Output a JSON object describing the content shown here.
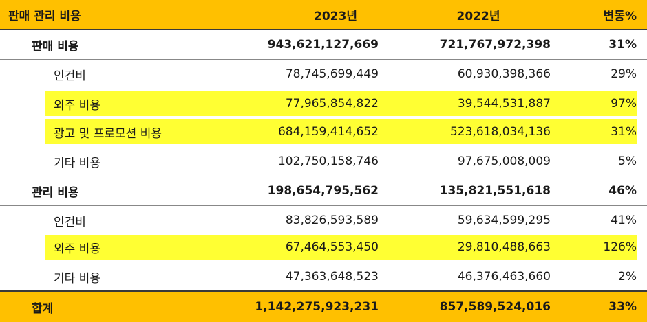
{
  "header": {
    "label": "판매 관리 비용",
    "y2023": "2023년",
    "y2022": "2022년",
    "change": "변동%"
  },
  "rows": [
    {
      "label": "판매 비용",
      "y2023": "943,621,127,669",
      "y2022": "721,767,972,398",
      "change": "31%"
    },
    {
      "label": "인건비",
      "y2023": "78,745,699,449",
      "y2022": "60,930,398,366",
      "change": "29%"
    },
    {
      "label": "외주 비용",
      "y2023": "77,965,854,822",
      "y2022": "39,544,531,887",
      "change": "97%"
    },
    {
      "label": "광고 및 프로모션 비용",
      "y2023": "684,159,414,652",
      "y2022": "523,618,034,136",
      "change": "31%"
    },
    {
      "label": "기타 비용",
      "y2023": "102,750,158,746",
      "y2022": "97,675,008,009",
      "change": "5%"
    },
    {
      "label": "관리 비용",
      "y2023": "198,654,795,562",
      "y2022": "135,821,551,618",
      "change": "46%"
    },
    {
      "label": "인건비",
      "y2023": "83,826,593,589",
      "y2022": "59,634,599,295",
      "change": "41%"
    },
    {
      "label": "외주 비용",
      "y2023": "67,464,553,450",
      "y2022": "29,810,488,663",
      "change": "126%"
    },
    {
      "label": "기타 비용",
      "y2023": "47,363,648,523",
      "y2022": "46,376,463,660",
      "change": "2%"
    }
  ],
  "total": {
    "label": "합계",
    "y2023": "1,142,275,923,231",
    "y2022": "857,589,524,016",
    "change": "33%"
  },
  "colors": {
    "header": "#ffc000",
    "highlight": "#ffff33"
  }
}
